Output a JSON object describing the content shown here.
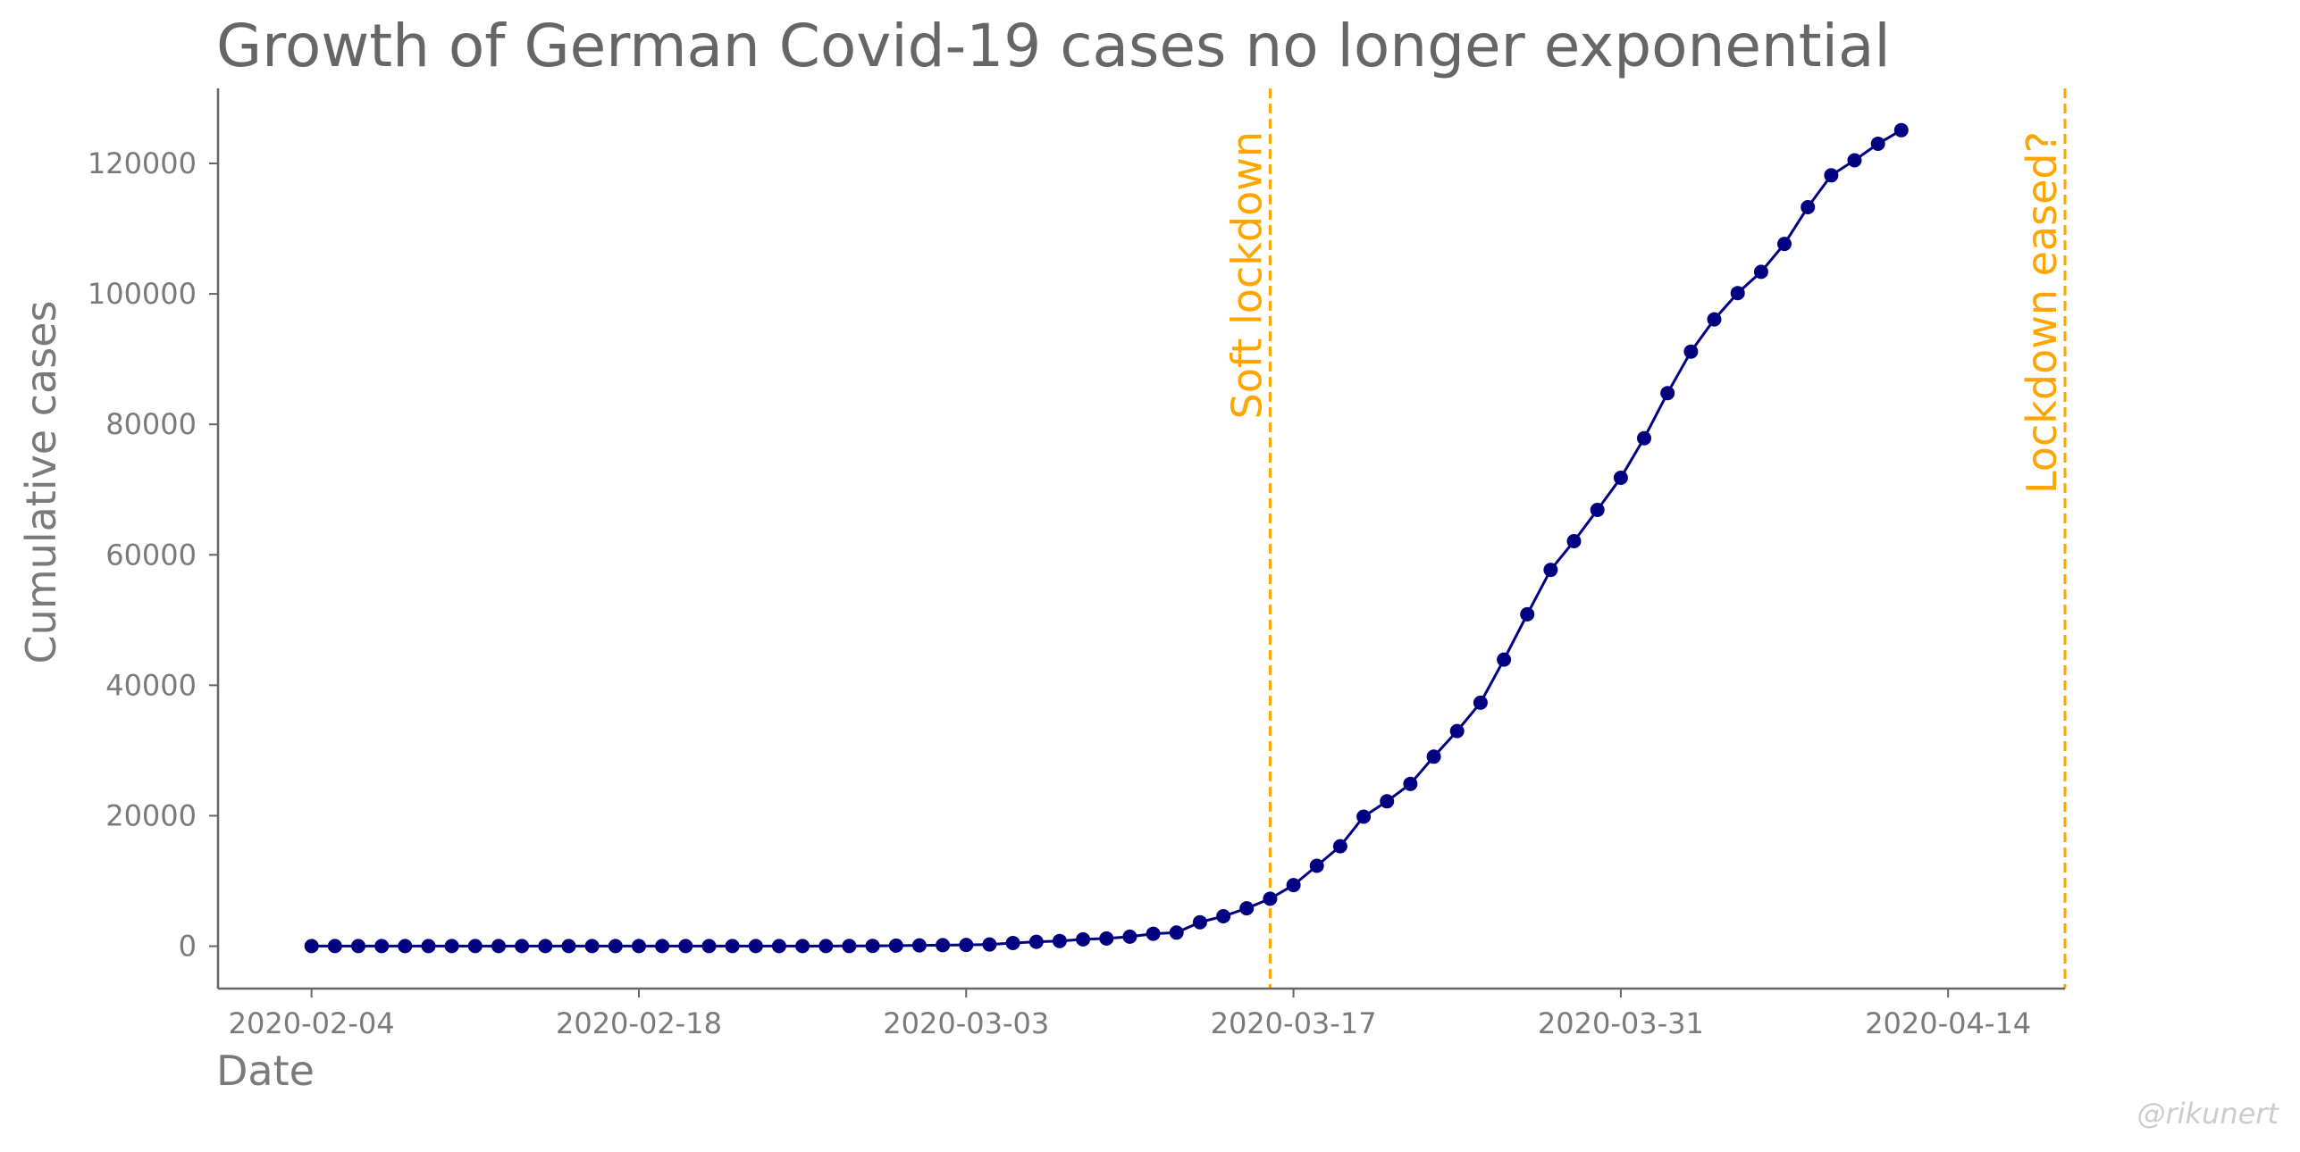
{
  "chart_data": {
    "type": "line",
    "title": "Growth of German Covid-19 cases no longer exponential",
    "xlabel": "Date",
    "ylabel": "Cumulative cases",
    "x_start": "2020-02-04",
    "x_end": "2020-04-14",
    "xlim": [
      "2020-01-31",
      "2020-04-19"
    ],
    "ylim": [
      -6500,
      131500
    ],
    "x_ticks": [
      "2020-02-04",
      "2020-02-18",
      "2020-03-03",
      "2020-03-17",
      "2020-03-31",
      "2020-04-14"
    ],
    "y_ticks": [
      0,
      20000,
      40000,
      60000,
      80000,
      100000,
      120000
    ],
    "grid": false,
    "legend": "none",
    "series": [
      {
        "color": "#000080",
        "marker": "circle",
        "values": [
          12,
          12,
          12,
          12,
          14,
          14,
          14,
          14,
          14,
          16,
          16,
          16,
          16,
          16,
          16,
          16,
          16,
          16,
          16,
          16,
          16,
          16,
          18,
          26,
          48,
          79,
          130,
          159,
          196,
          262,
          482,
          670,
          799,
          1040,
          1176,
          1457,
          1908,
          2078,
          3675,
          4585,
          5813,
          7272,
          9367,
          12327,
          15320,
          19848,
          22213,
          24873,
          29056,
          32986,
          37323,
          43938,
          50871,
          57695,
          62095,
          66885,
          71808,
          77872,
          84794,
          91159,
          96092,
          100123,
          103375,
          107663,
          113296,
          118181,
          120479,
          123016,
          125098
        ]
      }
    ],
    "events": [
      {
        "date": "2020-03-16",
        "label": "Soft lockdown",
        "color": "#FFA500"
      },
      {
        "date": "2020-04-19",
        "label": "Lockdown eased?",
        "color": "#FFA500"
      }
    ],
    "watermark": "@rikunert"
  }
}
